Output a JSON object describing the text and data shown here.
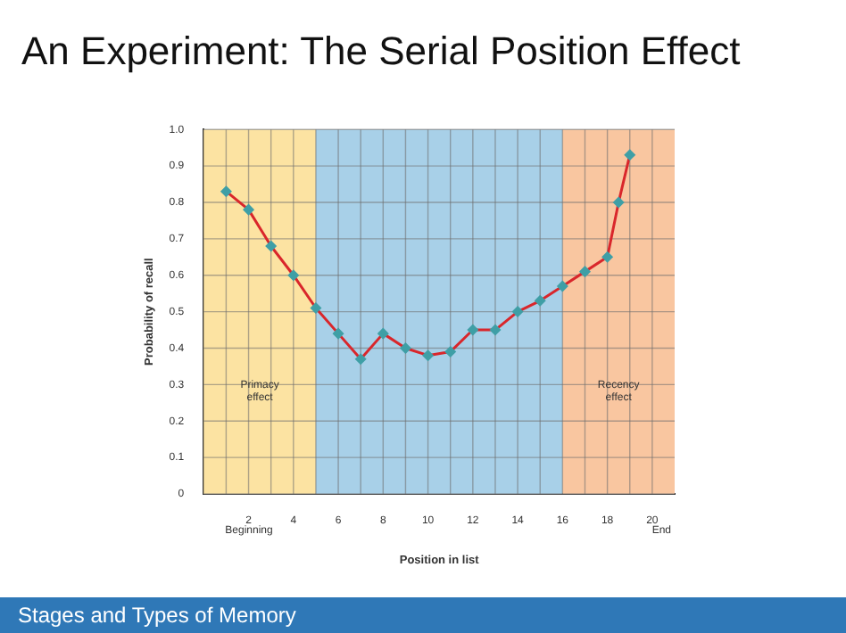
{
  "chart_data": {
    "type": "line",
    "title": "An Experiment: The Serial Position Effect",
    "xlabel": "Position in list",
    "ylabel": "Probability of recall",
    "series": [
      {
        "color": "#d9262b",
        "x": [
          1,
          2,
          3,
          4,
          5,
          6,
          7,
          8,
          9,
          10,
          11,
          12,
          13,
          14,
          15,
          16,
          17,
          18,
          18.5,
          19
        ],
        "values": [
          0.83,
          0.78,
          0.68,
          0.6,
          0.51,
          0.44,
          0.37,
          0.44,
          0.4,
          0.38,
          0.39,
          0.45,
          0.45,
          0.5,
          0.53,
          0.57,
          0.61,
          0.65,
          0.8,
          0.93
        ]
      }
    ],
    "xlim": [
      0,
      21
    ],
    "xticks": [
      {
        "value": 1,
        "label": null
      },
      2,
      {
        "value": 3,
        "label": null
      },
      4,
      {
        "value": 5,
        "label": null
      },
      6,
      {
        "value": 7,
        "label": null
      },
      8,
      {
        "value": 9,
        "label": null
      },
      10,
      {
        "value": 11,
        "label": null
      },
      12,
      {
        "value": 13,
        "label": null
      },
      14,
      {
        "value": 15,
        "label": null
      },
      16,
      {
        "value": 17,
        "label": null
      },
      18,
      {
        "value": 19,
        "label": null
      },
      20
    ],
    "ylim": [
      0,
      1
    ],
    "yticks": [
      0,
      0.1,
      0.2,
      0.3,
      0.4,
      0.5,
      0.6,
      0.7,
      0.8,
      0.9,
      {
        "value": 1,
        "label": "1.0"
      }
    ],
    "grid": true,
    "marker": "diamond",
    "line_style": "solid",
    "legend": false,
    "bands": [
      {
        "axis": "x",
        "from": 0,
        "to": 5,
        "label": "Primacy effect",
        "color": "#fce3a2"
      },
      {
        "axis": "x",
        "from": 5,
        "to": 16,
        "label": null,
        "color": "#a8d0e8"
      },
      {
        "axis": "x",
        "from": 16,
        "to": 21,
        "label": "Recency effect",
        "color": "#f9c6a0"
      }
    ],
    "annotations": [
      "Beginning",
      "End",
      "Stages and Types of Memory"
    ]
  }
}
